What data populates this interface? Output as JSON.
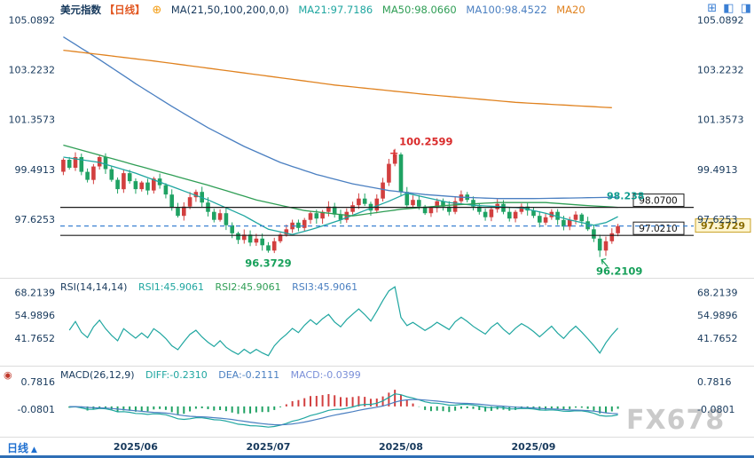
{
  "toolbar": {
    "symbol": "美元指数",
    "period_tag": "【日线】",
    "ma_formula": "MA(21,50,100,200,0,0)",
    "ma21": "MA21:97.7186",
    "ma50": "MA50:98.0660",
    "ma100": "MA100:98.4522",
    "ma200": "MA20"
  },
  "rsi_header": {
    "formula": "RSI(14,14,14)",
    "rsi1": "RSI1:45.9061",
    "rsi2": "RSI2:45.9061",
    "rsi3": "RSI3:45.9061"
  },
  "macd_header": {
    "formula": "MACD(26,12,9)",
    "diff": "DIFF:-0.2310",
    "dea": "DEA:-0.2111",
    "macd": "MACD:-0.0399"
  },
  "bottom": {
    "period_label": "日线",
    "dropdown_icon": "▲"
  },
  "watermark": "FX678",
  "icons": {
    "settings": "⊕",
    "macd_settings": "◉",
    "layout": [
      "⊞",
      "◧",
      "◨"
    ]
  },
  "colors": {
    "up": "#d23f3f",
    "down": "#1fa263",
    "ma21": "#1fa6a0",
    "ma50": "#2f9e55",
    "ma100": "#4a7fc1",
    "ma200": "#e0821f",
    "navy": "#17395c",
    "accent_dashed": "#3c82d2",
    "tag_bg": "#fdf5d0",
    "tag_border": "#c9a227",
    "tag_text": "#8a6d00",
    "teal_label": "#0f9b8e",
    "red_label": "#d92b2b",
    "green_label": "#17a05a",
    "diff_line": "#1fa6a0",
    "dea_line": "#4a7fc1"
  },
  "chart_data": {
    "type": "candlestick",
    "title": "美元指数 日线 (US Dollar Index, Daily)",
    "x_axis": {
      "month_labels": [
        {
          "label": "2025/06",
          "index": 12
        },
        {
          "label": "2025/07",
          "index": 34
        },
        {
          "label": "2025/08",
          "index": 56
        },
        {
          "label": "2025/09",
          "index": 78
        }
      ]
    },
    "main_panel": {
      "y_axis_labels": [
        "105.0892",
        "103.2232",
        "101.3573",
        "99.4913",
        "97.6253"
      ],
      "closes": [
        99.85,
        99.55,
        99.95,
        99.4,
        99.1,
        99.6,
        99.95,
        99.5,
        99.1,
        98.75,
        99.35,
        99.05,
        98.75,
        99.0,
        98.7,
        99.15,
        98.9,
        98.55,
        98.05,
        97.75,
        98.1,
        98.45,
        98.65,
        98.25,
        97.9,
        97.6,
        97.85,
        97.4,
        97.1,
        96.85,
        97.05,
        96.75,
        96.9,
        96.65,
        96.45,
        96.8,
        97.05,
        97.25,
        97.5,
        97.3,
        97.6,
        97.85,
        97.65,
        97.9,
        98.1,
        97.8,
        97.6,
        97.9,
        98.15,
        98.4,
        98.2,
        97.95,
        98.4,
        99.0,
        99.7,
        100.05,
        98.65,
        98.15,
        98.35,
        98.1,
        97.85,
        98.05,
        98.3,
        98.1,
        97.9,
        98.3,
        98.55,
        98.35,
        98.1,
        97.9,
        97.7,
        98.0,
        98.2,
        97.9,
        97.65,
        97.9,
        98.1,
        97.95,
        97.75,
        97.5,
        97.7,
        97.9,
        97.6,
        97.35,
        97.6,
        97.8,
        97.55,
        97.25,
        96.9,
        96.45,
        96.8,
        97.1,
        97.37
      ],
      "wick_overrides": {
        "34": {
          "l": 96.3729
        },
        "55": {
          "h": 100.2599
        },
        "89": {
          "l": 96.2109
        }
      },
      "ma_lines": [
        {
          "name": "MA21",
          "color_key": "ma21",
          "current": 97.7186,
          "points": [
            [
              0,
              99.95
            ],
            [
              6,
              99.75
            ],
            [
              12,
              99.35
            ],
            [
              18,
              98.85
            ],
            [
              24,
              98.35
            ],
            [
              30,
              97.75
            ],
            [
              34,
              97.25
            ],
            [
              38,
              97.05
            ],
            [
              42,
              97.3
            ],
            [
              46,
              97.6
            ],
            [
              50,
              97.95
            ],
            [
              54,
              98.3
            ],
            [
              57,
              98.6
            ],
            [
              60,
              98.45
            ],
            [
              64,
              98.25
            ],
            [
              68,
              98.15
            ],
            [
              72,
              98.1
            ],
            [
              76,
              98.05
            ],
            [
              80,
              97.85
            ],
            [
              84,
              97.6
            ],
            [
              88,
              97.4
            ],
            [
              90,
              97.5
            ],
            [
              92,
              97.72
            ]
          ]
        },
        {
          "name": "MA50",
          "color_key": "ma50",
          "current": 98.066,
          "points": [
            [
              0,
              100.4
            ],
            [
              8,
              99.9
            ],
            [
              16,
              99.4
            ],
            [
              24,
              98.9
            ],
            [
              32,
              98.35
            ],
            [
              40,
              97.95
            ],
            [
              48,
              97.75
            ],
            [
              56,
              98.0
            ],
            [
              64,
              98.15
            ],
            [
              72,
              98.25
            ],
            [
              80,
              98.25
            ],
            [
              86,
              98.15
            ],
            [
              92,
              98.07
            ]
          ]
        },
        {
          "name": "MA100",
          "color_key": "ma100",
          "current": 98.4522,
          "points": [
            [
              0,
              104.45
            ],
            [
              6,
              103.6
            ],
            [
              12,
              102.7
            ],
            [
              18,
              101.85
            ],
            [
              24,
              101.05
            ],
            [
              30,
              100.35
            ],
            [
              36,
              99.75
            ],
            [
              42,
              99.3
            ],
            [
              48,
              98.95
            ],
            [
              54,
              98.7
            ],
            [
              60,
              98.55
            ],
            [
              66,
              98.45
            ],
            [
              72,
              98.4
            ],
            [
              78,
              98.4
            ],
            [
              84,
              98.42
            ],
            [
              92,
              98.45
            ]
          ]
        },
        {
          "name": "MA200",
          "color_key": "ma200",
          "points": [
            [
              0,
              103.95
            ],
            [
              15,
              103.55
            ],
            [
              30,
              103.1
            ],
            [
              45,
              102.65
            ],
            [
              60,
              102.3
            ],
            [
              75,
              102.0
            ],
            [
              91,
              101.8
            ]
          ]
        }
      ],
      "horizontal_lines": [
        {
          "price": 98.07,
          "label": "98.0700"
        },
        {
          "price": 97.021,
          "label": "97.0210"
        }
      ],
      "current_price": {
        "price": 97.3729,
        "label": "97.3729"
      },
      "level_label": {
        "text": "98.238",
        "price": 98.238
      },
      "annotations": [
        {
          "text": "100.2599",
          "index": 55,
          "price": 100.2599,
          "color_key": "red_label",
          "pos": "peak"
        },
        {
          "text": "96.3729",
          "index": 34,
          "price": 96.3729,
          "color_key": "green_label",
          "pos": "below"
        },
        {
          "text": "96.2109",
          "index": 89,
          "price": 96.2109,
          "color_key": "green_label",
          "pos": "below-right"
        }
      ]
    },
    "rsi_panel": {
      "y_axis_labels": [
        "68.2139",
        "54.9896",
        "41.7652"
      ],
      "params": [
        14,
        14,
        14
      ],
      "rsi1": 45.9061,
      "rsi2": 45.9061,
      "rsi3": 45.9061
    },
    "macd_panel": {
      "y_axis_labels": [
        "0.7816",
        "-0.0801"
      ],
      "params": [
        26,
        12,
        9
      ],
      "diff": -0.231,
      "dea": -0.2111,
      "macd": -0.0399
    }
  }
}
